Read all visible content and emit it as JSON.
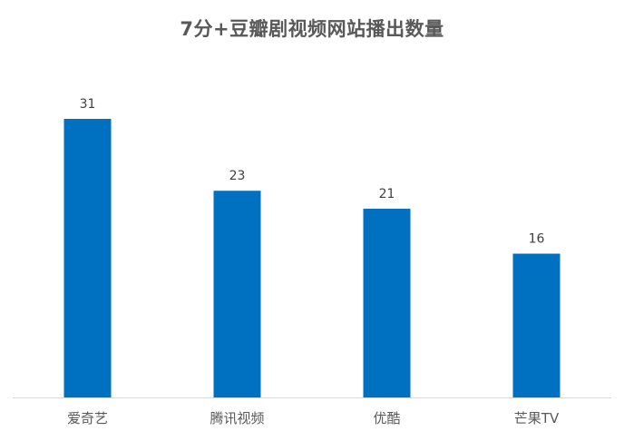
{
  "chart_data": {
    "type": "bar",
    "title": "7分+豆瓣剧视频网站播出数量",
    "categories": [
      "爱奇艺",
      "腾讯视频",
      "优酷",
      "芒果TV"
    ],
    "values": [
      31,
      23,
      21,
      16
    ],
    "xlabel": "",
    "ylabel": "",
    "ylim": [
      0,
      31
    ],
    "grid": false,
    "legend": "none",
    "bar_color": "#0070C0",
    "axis_color": "#D9D9D9"
  }
}
